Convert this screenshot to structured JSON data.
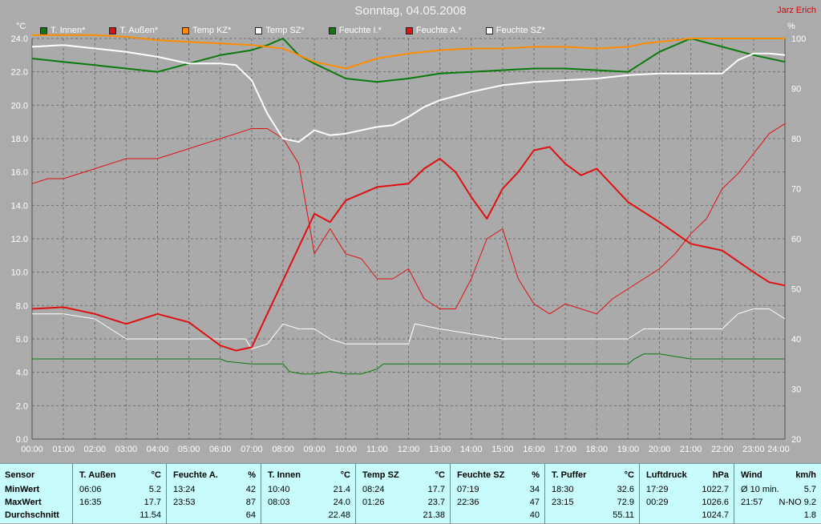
{
  "title": "Sonntag, 04.05.2008",
  "author": "Jarz Erich",
  "chart_data": {
    "type": "line",
    "ylabel_left": "°C",
    "ylabel_right": "%",
    "ylim_left": [
      0,
      24
    ],
    "ylim_right": [
      20,
      100
    ],
    "yticks_left": [
      "0.0",
      "2.0",
      "4.0",
      "6.0",
      "8.0",
      "10.0",
      "12.0",
      "14.0",
      "16.0",
      "18.0",
      "20.0",
      "22.0",
      "24.0"
    ],
    "yticks_right": [
      "20",
      "30",
      "40",
      "50",
      "60",
      "70",
      "80",
      "90",
      "100"
    ],
    "xticks": [
      "00:00",
      "01:00",
      "02:00",
      "03:00",
      "04:00",
      "05:00",
      "06:00",
      "07:00",
      "08:00",
      "09:00",
      "10:00",
      "11:00",
      "12:00",
      "13:00",
      "14:00",
      "15:00",
      "16:00",
      "17:00",
      "18:00",
      "19:00",
      "20:00",
      "21:00",
      "22:00",
      "23:00",
      "24:00"
    ],
    "grid": true,
    "legend_position": "top",
    "series": [
      {
        "name": "T. Innen*",
        "color": "#0a7a0a",
        "axis": "left",
        "width": 2,
        "x": [
          0,
          1,
          2,
          3,
          4,
          5,
          6,
          7,
          7.5,
          8,
          8.5,
          9,
          10,
          11,
          12,
          13,
          14,
          15,
          16,
          17,
          18,
          19,
          20,
          21,
          22,
          23,
          24
        ],
        "y": [
          22.8,
          22.6,
          22.4,
          22.2,
          22.0,
          22.5,
          23.0,
          23.3,
          23.6,
          24.0,
          23.0,
          22.5,
          21.6,
          21.4,
          21.6,
          21.9,
          22.0,
          22.1,
          22.2,
          22.2,
          22.1,
          22.0,
          23.2,
          24.0,
          23.5,
          23.0,
          22.6
        ]
      },
      {
        "name": "T. Außen*",
        "color": "#e01010",
        "axis": "left",
        "width": 2,
        "x": [
          0,
          1,
          2,
          3,
          4,
          5,
          6,
          6.5,
          7,
          7.5,
          8,
          8.5,
          9,
          9.5,
          10,
          11,
          12,
          12.5,
          13,
          13.5,
          14,
          14.5,
          15,
          15.5,
          16,
          16.5,
          17,
          17.5,
          18,
          18.5,
          19,
          20,
          21,
          22,
          23,
          23.5,
          24
        ],
        "y": [
          7.8,
          7.9,
          7.5,
          6.9,
          7.5,
          7.0,
          5.6,
          5.3,
          5.5,
          7.5,
          9.5,
          11.5,
          13.5,
          13.0,
          14.3,
          15.1,
          15.3,
          16.2,
          16.8,
          16.0,
          14.5,
          13.2,
          15.0,
          16.0,
          17.3,
          17.5,
          16.5,
          15.8,
          16.2,
          15.2,
          14.2,
          13.0,
          11.7,
          11.3,
          10.0,
          9.4,
          9.2
        ]
      },
      {
        "name": "Temp KZ*",
        "color": "#ff8c00",
        "axis": "left",
        "width": 2,
        "x": [
          0,
          1,
          2,
          3,
          4,
          5,
          6,
          7,
          8,
          8.5,
          9,
          9.5,
          10,
          11,
          12,
          13,
          14,
          15,
          16,
          17,
          18,
          19,
          19.5,
          20,
          21,
          22,
          23,
          24
        ],
        "y": [
          24.2,
          24.2,
          24.2,
          24.1,
          23.9,
          23.8,
          23.7,
          23.6,
          23.4,
          23.0,
          22.6,
          22.4,
          22.2,
          22.8,
          23.1,
          23.3,
          23.4,
          23.4,
          23.5,
          23.5,
          23.4,
          23.5,
          23.7,
          23.8,
          24.0,
          24.0,
          24.0,
          24.0
        ]
      },
      {
        "name": "Temp SZ*",
        "color": "#ffffff",
        "axis": "left",
        "width": 2,
        "x": [
          0,
          1,
          2,
          3,
          4,
          5,
          6,
          6.5,
          7,
          7.5,
          8,
          8.5,
          9,
          9.5,
          10,
          11,
          11.5,
          12,
          12.5,
          13,
          14,
          15,
          16,
          17,
          18,
          19,
          20,
          21,
          22,
          22.5,
          23,
          23.5,
          24
        ],
        "y": [
          23.5,
          23.6,
          23.4,
          23.2,
          22.9,
          22.5,
          22.5,
          22.4,
          21.5,
          19.5,
          18.0,
          17.8,
          18.5,
          18.2,
          18.3,
          18.7,
          18.8,
          19.3,
          19.9,
          20.3,
          20.8,
          21.2,
          21.4,
          21.5,
          21.6,
          21.8,
          21.9,
          21.9,
          21.9,
          22.7,
          23.1,
          23.1,
          23.0
        ]
      },
      {
        "name": "Feuchte I.*",
        "color": "#0a7a0a",
        "axis": "right",
        "width": 1,
        "x": [
          0,
          1,
          2,
          3,
          4,
          5,
          6,
          6.2,
          7,
          7.5,
          8,
          8.2,
          8.6,
          9,
          9.5,
          10,
          10.5,
          11,
          11.2,
          12,
          13,
          14,
          15,
          16,
          17,
          18,
          19,
          19.2,
          19.5,
          20,
          21,
          21.5,
          22,
          23,
          24
        ],
        "y": [
          36,
          36,
          36,
          36,
          36,
          36,
          36,
          35.5,
          35,
          35,
          35,
          33.5,
          33,
          33,
          33.5,
          33,
          33,
          34,
          35,
          35,
          35,
          35,
          35,
          35,
          35,
          35,
          35,
          36,
          37,
          37,
          36,
          36,
          36,
          36,
          36
        ]
      },
      {
        "name": "Feuchte A.*",
        "color": "#e01010",
        "axis": "right",
        "width": 1,
        "x": [
          0,
          0.5,
          1,
          2,
          3,
          4,
          5,
          6,
          6.5,
          7,
          7.5,
          8,
          8.5,
          9,
          9.5,
          10,
          10.5,
          11,
          11.5,
          12,
          12.5,
          13,
          13.5,
          14,
          14.5,
          15,
          15.5,
          16,
          16.5,
          17,
          17.5,
          18,
          18.5,
          19,
          19.5,
          20,
          20.5,
          21,
          21.5,
          22,
          22.5,
          23,
          23.5,
          24
        ],
        "y": [
          71,
          72,
          72,
          74,
          76,
          76,
          78,
          80,
          81,
          82,
          82,
          80,
          75,
          57,
          62,
          57,
          56,
          52,
          52,
          54,
          48,
          46,
          46,
          52,
          60,
          62,
          52,
          47,
          45,
          47,
          46,
          45,
          48,
          50,
          52,
          54,
          57,
          61,
          64,
          70,
          73,
          77,
          81,
          83
        ]
      },
      {
        "name": "Feuchte SZ*",
        "color": "#ffffff",
        "axis": "right",
        "width": 1,
        "x": [
          0,
          1,
          2,
          3,
          4,
          5,
          6,
          6.8,
          7,
          7.5,
          8,
          8.5,
          9,
          9.5,
          10,
          11,
          11.5,
          12,
          12.2,
          13,
          14,
          15,
          16,
          17,
          18,
          19,
          19.5,
          20,
          21,
          21.5,
          22,
          22.5,
          23,
          23.5,
          24
        ],
        "y": [
          45,
          45,
          44,
          40,
          40,
          40,
          40,
          40,
          38,
          39,
          43,
          42,
          42,
          40,
          39,
          39,
          39,
          39,
          43,
          42,
          41,
          40,
          40,
          40,
          40,
          40,
          42,
          42,
          42,
          42,
          42,
          45,
          46,
          46,
          44
        ]
      }
    ]
  },
  "table": {
    "row_labels": [
      "Sensor",
      "MinWert",
      "MaxWert",
      "Durchschnitt"
    ],
    "columns": [
      {
        "name": "T. Außen",
        "unit": "°C",
        "min_t": "06:06",
        "min_v": "5.2",
        "max_t": "16:35",
        "max_v": "17.7",
        "avg": "11.54"
      },
      {
        "name": "Feuchte A.",
        "unit": "%",
        "min_t": "13:24",
        "min_v": "42",
        "max_t": "23:53",
        "max_v": "87",
        "avg": "64"
      },
      {
        "name": "T. Innen",
        "unit": "°C",
        "min_t": "10:40",
        "min_v": "21.4",
        "max_t": "08:03",
        "max_v": "24.0",
        "avg": "22.48"
      },
      {
        "name": "Temp SZ",
        "unit": "°C",
        "min_t": "08:24",
        "min_v": "17.7",
        "max_t": "01:26",
        "max_v": "23.7",
        "avg": "21.38"
      },
      {
        "name": "Feuchte SZ",
        "unit": "%",
        "min_t": "07:19",
        "min_v": "34",
        "max_t": "22:36",
        "max_v": "47",
        "avg": "40"
      },
      {
        "name": "T. Puffer",
        "unit": "°C",
        "min_t": "18:30",
        "min_v": "32.6",
        "max_t": "23:15",
        "max_v": "72.9",
        "avg": "55.11"
      },
      {
        "name": "Luftdruck",
        "unit": "hPa",
        "min_t": "17:29",
        "min_v": "1022.7",
        "max_t": "00:29",
        "max_v": "1026.6",
        "avg": "1024.7"
      },
      {
        "name": "Wind",
        "unit": "km/h",
        "min_t": "Ø 10 min.",
        "min_v": "5.7",
        "max_t": "21:57",
        "max_v": "N-NO 9.2",
        "avg": "1.8"
      }
    ]
  }
}
